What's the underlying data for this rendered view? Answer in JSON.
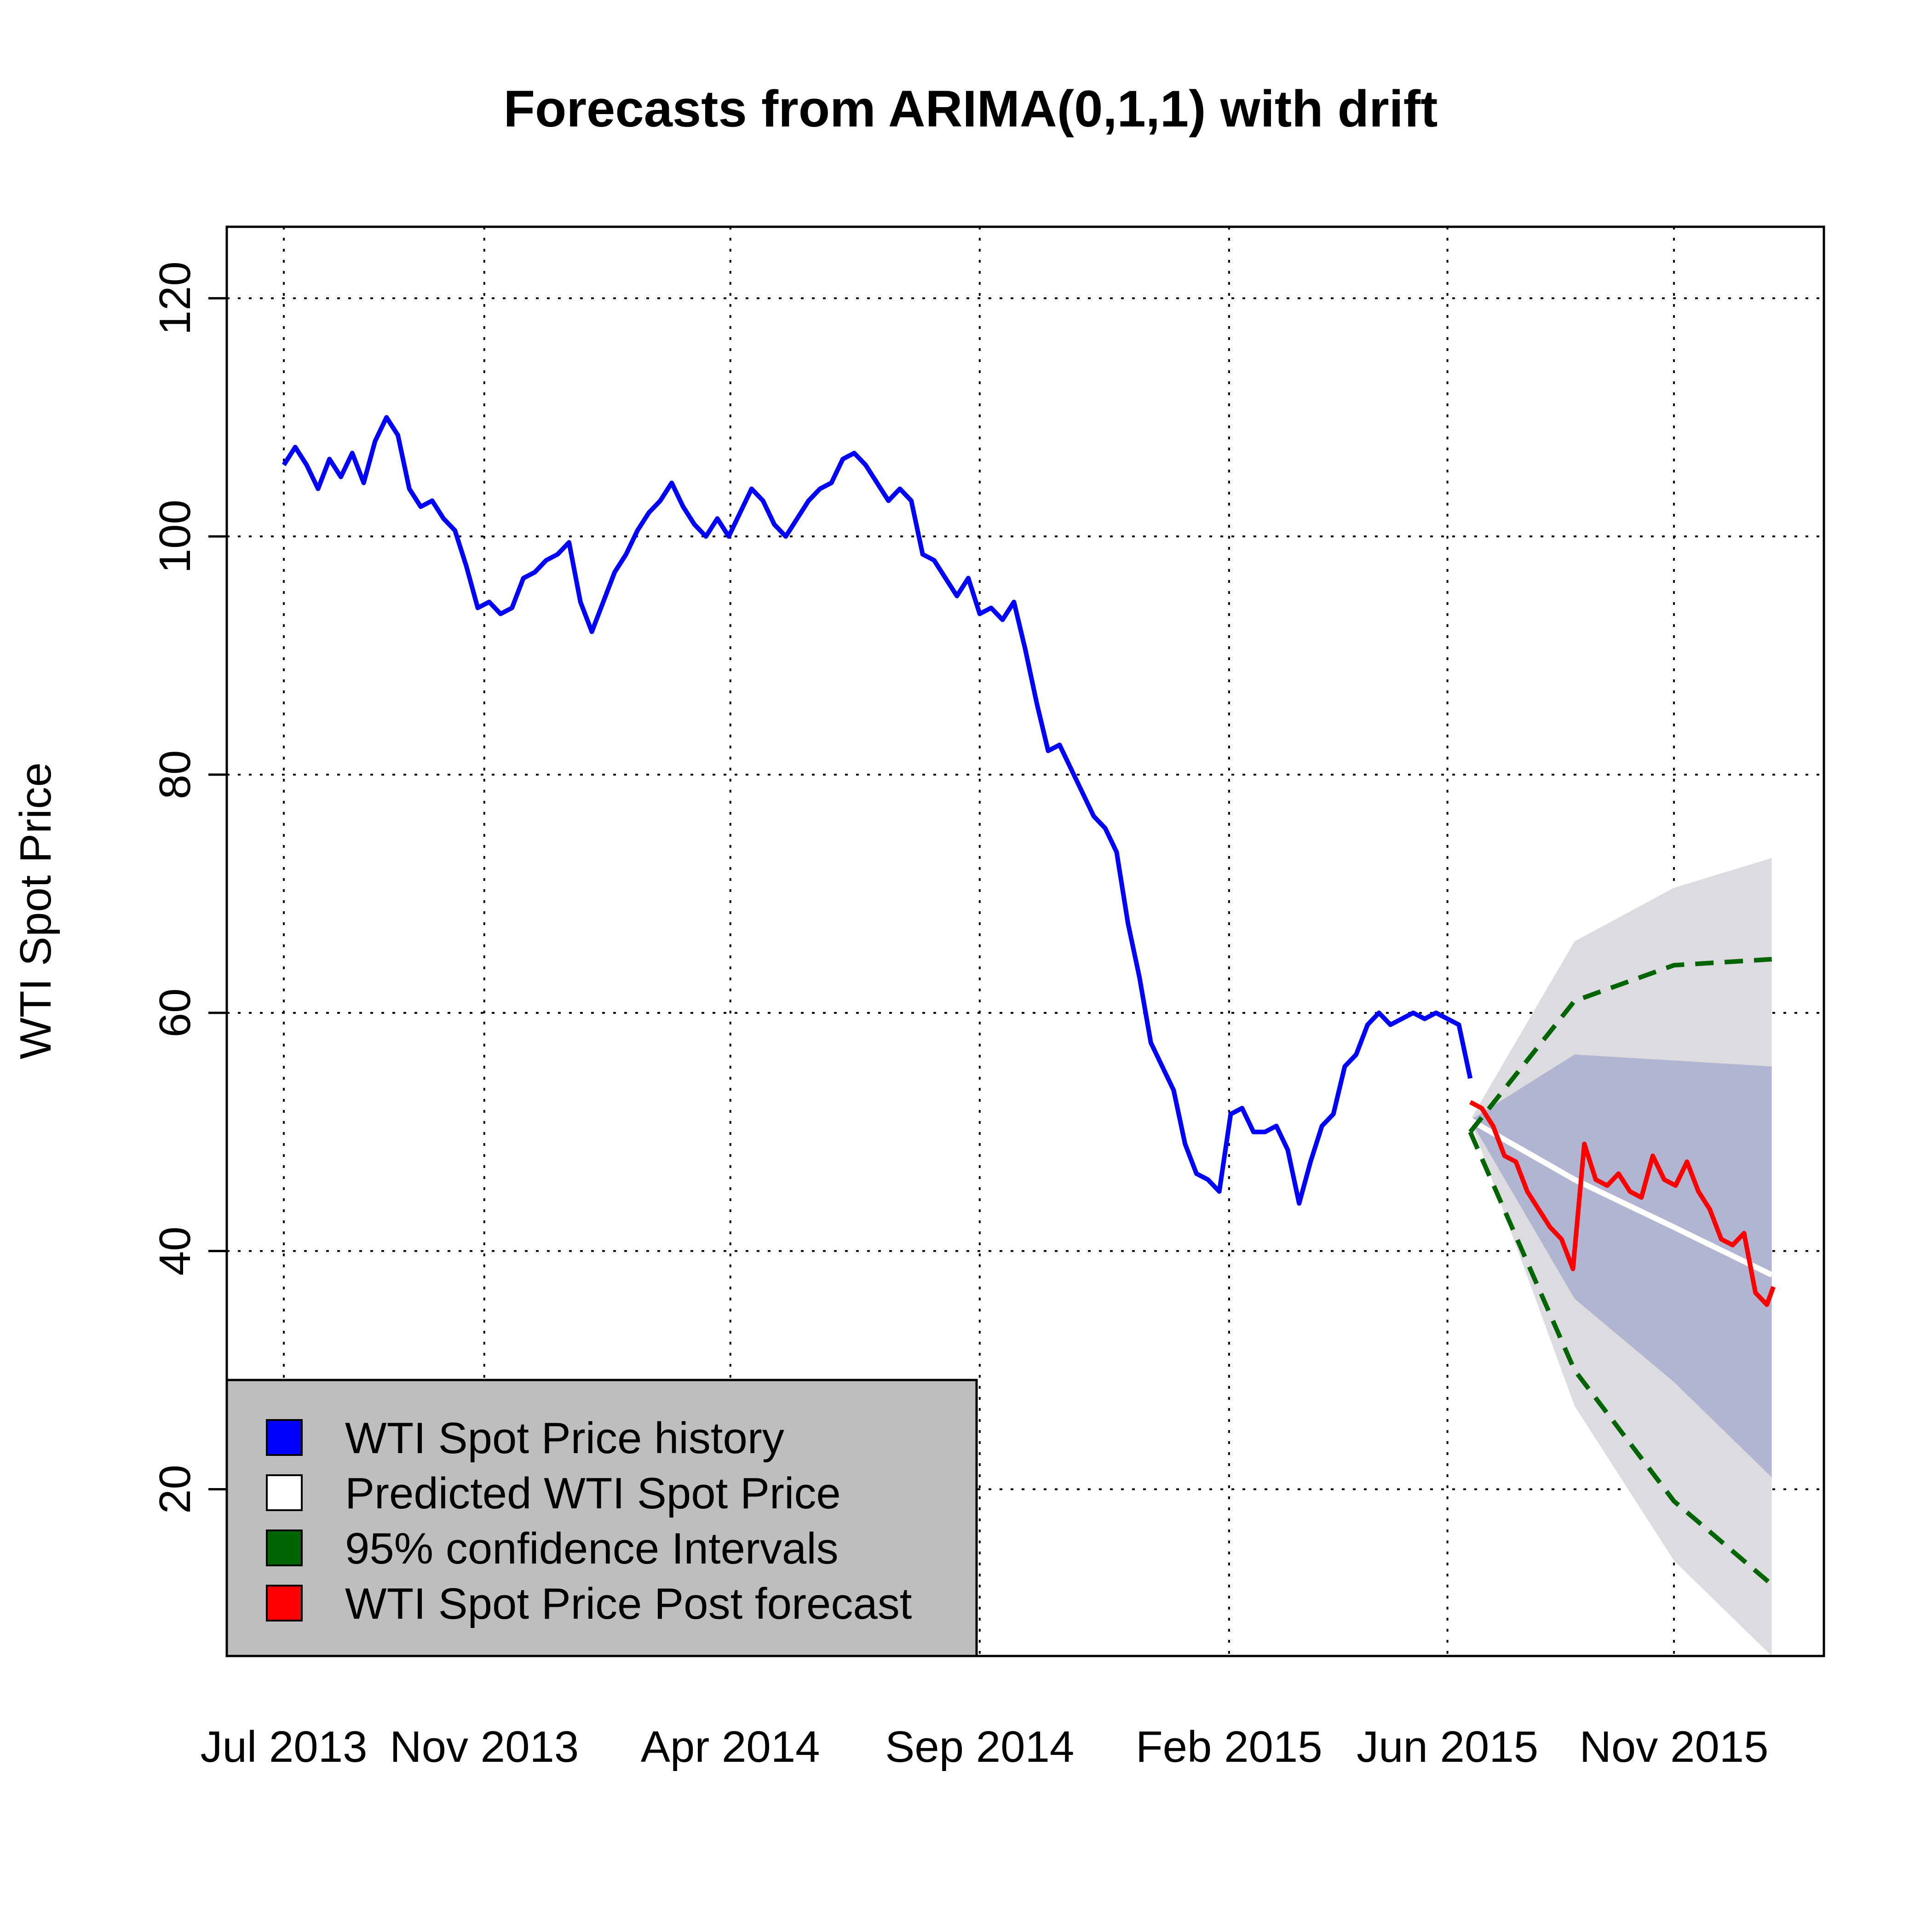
{
  "chart_data": {
    "type": "line",
    "title": "Forecasts from ARIMA(0,1,1) with drift",
    "xlabel": "",
    "ylabel": "WTI Spot Price",
    "x_ticks": [
      "Jul 2013",
      "Nov 2013",
      "Apr 2014",
      "Sep 2014",
      "Feb 2015",
      "Jun 2015",
      "Nov 2015"
    ],
    "y_ticks": [
      20,
      40,
      60,
      80,
      100,
      120
    ],
    "xlim": [
      "2013-05-27",
      "2016-02-01"
    ],
    "ylim": [
      6,
      126
    ],
    "grid": true,
    "legend_position": "bottom-left",
    "colors": {
      "history": "#0000ff",
      "predicted": "#ffffff",
      "ci95_lines": "#006400",
      "post_forecast": "#ff0000",
      "band80": "#b1b5d2",
      "band95": "#dcdce0",
      "legend_bg": "#bebebe"
    },
    "legend": [
      {
        "label": "WTI Spot Price  history",
        "color": "#0000ff"
      },
      {
        "label": "Predicted  WTI Spot Price",
        "color": "#ffffff"
      },
      {
        "label": "95% confidence Intervals",
        "color": "#006400"
      },
      {
        "label": "WTI Spot Price  Post forecast",
        "color": "#ff0000"
      }
    ],
    "series": [
      {
        "name": "WTI Spot Price  history",
        "x": [
          "2013-07-01",
          "2013-07-08",
          "2013-07-15",
          "2013-07-22",
          "2013-07-29",
          "2013-08-05",
          "2013-08-12",
          "2013-08-19",
          "2013-08-26",
          "2013-09-02",
          "2013-09-09",
          "2013-09-16",
          "2013-09-23",
          "2013-09-30",
          "2013-10-07",
          "2013-10-14",
          "2013-10-21",
          "2013-10-28",
          "2013-11-04",
          "2013-11-11",
          "2013-11-18",
          "2013-11-25",
          "2013-12-02",
          "2013-12-09",
          "2013-12-16",
          "2013-12-23",
          "2013-12-30",
          "2014-01-06",
          "2014-01-13",
          "2014-01-20",
          "2014-01-27",
          "2014-02-03",
          "2014-02-10",
          "2014-02-17",
          "2014-02-24",
          "2014-03-03",
          "2014-03-10",
          "2014-03-17",
          "2014-03-24",
          "2014-03-31",
          "2014-04-07",
          "2014-04-14",
          "2014-04-21",
          "2014-04-28",
          "2014-05-05",
          "2014-05-12",
          "2014-05-19",
          "2014-05-26",
          "2014-06-02",
          "2014-06-09",
          "2014-06-16",
          "2014-06-23",
          "2014-06-30",
          "2014-07-07",
          "2014-07-14",
          "2014-07-21",
          "2014-07-28",
          "2014-08-04",
          "2014-08-11",
          "2014-08-18",
          "2014-08-25",
          "2014-09-01",
          "2014-09-08",
          "2014-09-15",
          "2014-09-22",
          "2014-09-29",
          "2014-10-06",
          "2014-10-13",
          "2014-10-20",
          "2014-10-27",
          "2014-11-03",
          "2014-11-10",
          "2014-11-17",
          "2014-11-24",
          "2014-12-01",
          "2014-12-08",
          "2014-12-15",
          "2014-12-22",
          "2014-12-29",
          "2015-01-05",
          "2015-01-12",
          "2015-01-19",
          "2015-01-26",
          "2015-02-02",
          "2015-02-09",
          "2015-02-16",
          "2015-02-23",
          "2015-03-02",
          "2015-03-09",
          "2015-03-16",
          "2015-03-23",
          "2015-03-30",
          "2015-04-06",
          "2015-04-13",
          "2015-04-20",
          "2015-04-27",
          "2015-05-04",
          "2015-05-11",
          "2015-05-18",
          "2015-05-25",
          "2015-06-01",
          "2015-06-08",
          "2015-06-15",
          "2015-06-22",
          "2015-06-29"
        ],
        "values": [
          106.0,
          107.5,
          106.0,
          104.0,
          106.5,
          105.0,
          107.0,
          104.5,
          108.0,
          110.0,
          108.5,
          104.0,
          102.5,
          103.0,
          101.5,
          100.5,
          97.5,
          94.0,
          94.5,
          93.5,
          94.0,
          96.5,
          97.0,
          98.0,
          98.5,
          99.5,
          94.5,
          92.0,
          94.5,
          97.0,
          98.5,
          100.5,
          102.0,
          103.0,
          104.5,
          102.5,
          101.0,
          100.0,
          101.5,
          100.0,
          102.0,
          104.0,
          103.0,
          101.0,
          100.0,
          101.5,
          103.0,
          104.0,
          104.5,
          106.5,
          107.0,
          106.0,
          104.5,
          103.0,
          104.0,
          103.0,
          98.5,
          98.0,
          96.5,
          95.0,
          96.5,
          93.5,
          94.0,
          93.0,
          94.5,
          90.5,
          86.0,
          82.0,
          82.5,
          80.5,
          78.5,
          76.5,
          75.5,
          73.5,
          67.5,
          63.0,
          57.5,
          55.5,
          53.5,
          49.0,
          46.5,
          46.0,
          45.0,
          51.5,
          52.0,
          50.0,
          50.0,
          50.5,
          48.5,
          44.0,
          47.5,
          50.5,
          51.5,
          55.5,
          56.5,
          59.0,
          60.0,
          59.0,
          59.5,
          60.0,
          59.5,
          60.0,
          59.5,
          59.0,
          54.5
        ]
      },
      {
        "name": "Predicted  WTI Spot Price",
        "x": [
          "2015-06-29",
          "2015-09-01",
          "2015-11-01",
          "2015-12-31"
        ],
        "values": [
          51.0,
          46.0,
          42.0,
          38.0
        ]
      },
      {
        "name": "WTI Spot Price  Post forecast",
        "x": [
          "2015-06-29",
          "2015-07-06",
          "2015-07-13",
          "2015-07-20",
          "2015-07-27",
          "2015-08-03",
          "2015-08-10",
          "2015-08-17",
          "2015-08-24",
          "2015-08-31",
          "2015-09-07",
          "2015-09-14",
          "2015-09-21",
          "2015-09-28",
          "2015-10-05",
          "2015-10-12",
          "2015-10-19",
          "2015-10-26",
          "2015-11-02",
          "2015-11-09",
          "2015-11-16",
          "2015-11-23",
          "2015-11-30",
          "2015-12-07",
          "2015-12-14",
          "2015-12-21",
          "2015-12-28",
          "2016-01-01"
        ],
        "values": [
          52.5,
          52.0,
          50.5,
          48.0,
          47.5,
          45.0,
          43.5,
          42.0,
          41.0,
          38.5,
          49.0,
          46.0,
          45.5,
          46.5,
          45.0,
          44.5,
          48.0,
          46.0,
          45.5,
          47.5,
          45.0,
          43.5,
          41.0,
          40.5,
          41.5,
          36.5,
          35.5,
          37.0
        ]
      }
    ],
    "ci95": {
      "x": [
        "2015-06-29",
        "2015-09-01",
        "2015-11-01",
        "2015-12-31"
      ],
      "upper": [
        50.0,
        61.0,
        64.0,
        64.5
      ],
      "lower": [
        50.0,
        30.0,
        19.0,
        12.0
      ]
    },
    "band80": {
      "x": [
        "2015-06-29",
        "2015-09-01",
        "2015-11-01",
        "2015-12-31"
      ],
      "upper": [
        51.0,
        56.5,
        56.0,
        55.5
      ],
      "lower": [
        51.0,
        36.0,
        29.0,
        21.0
      ]
    },
    "band95": {
      "x": [
        "2015-06-29",
        "2015-09-01",
        "2015-11-01",
        "2015-12-31"
      ],
      "upper": [
        51.0,
        66.0,
        70.5,
        73.0
      ],
      "lower": [
        51.0,
        27.0,
        14.0,
        6.0
      ]
    }
  }
}
